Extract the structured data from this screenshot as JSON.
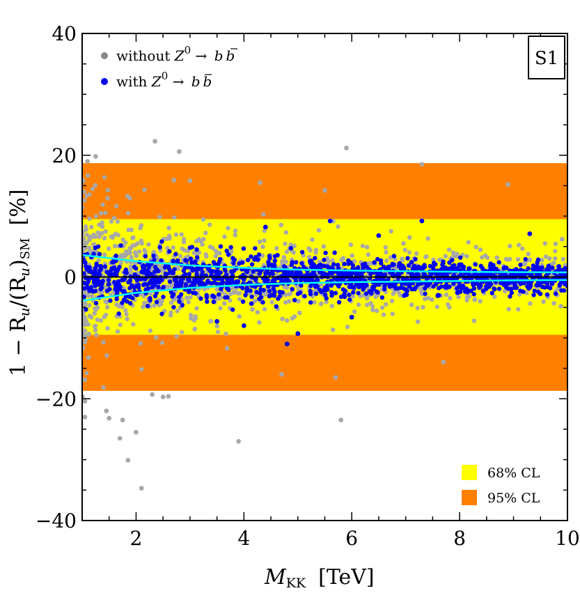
{
  "chart_data": {
    "type": "scatter",
    "title": "",
    "tag": "S1",
    "xlabel": {
      "main": "M",
      "sub": "KK",
      "unit": "[TeV]"
    },
    "ylabel": {
      "prefix": "1 − R",
      "sub1": "u",
      "mid": "/(R",
      "sub2": "u",
      "close": ")",
      "sub3": "SM",
      "unit": "[%]"
    },
    "xlim": [
      1,
      10
    ],
    "ylim": [
      -40,
      40
    ],
    "x_ticks": [
      2,
      4,
      6,
      8,
      10
    ],
    "x_tick_labels": [
      "2",
      "4",
      "6",
      "8",
      "10"
    ],
    "y_ticks": [
      -40,
      -20,
      0,
      20,
      40
    ],
    "y_tick_labels": [
      "−40",
      "−20",
      "0",
      "20",
      "40"
    ],
    "bands": [
      {
        "name": "95% CL",
        "range": [
          -18.7,
          18.7
        ],
        "color": "#ff8000"
      },
      {
        "name": "68% CL",
        "range": [
          -9.5,
          9.5
        ],
        "color": "#ffff00"
      }
    ],
    "series": [
      {
        "name": "without Z0 → b b̄",
        "legend": {
          "lead": "without ",
          "z": "Z",
          "sup": "0",
          "arrow": " → ",
          "b": "b",
          "bbar": "b"
        },
        "color": "#a8a8a8",
        "outliers": [
          [
            1.1,
            19
          ],
          [
            1.25,
            19.8
          ],
          [
            2.35,
            22.3
          ],
          [
            2.8,
            20.6
          ],
          [
            5.9,
            21.2
          ],
          [
            7.3,
            18.5
          ],
          [
            8.9,
            15.2
          ],
          [
            1.05,
            -20.4
          ],
          [
            1.05,
            -23
          ],
          [
            1.45,
            -22
          ],
          [
            1.5,
            -23.2
          ],
          [
            1.7,
            -26.5
          ],
          [
            1.85,
            -30.1
          ],
          [
            2.0,
            -25.5
          ],
          [
            2.1,
            -34.7
          ],
          [
            1.75,
            -23.5
          ],
          [
            2.3,
            -19.3
          ],
          [
            2.5,
            -19.7
          ],
          [
            2.6,
            -19.6
          ],
          [
            3.9,
            -27
          ],
          [
            5.8,
            -23.5
          ],
          [
            4.7,
            -16
          ],
          [
            5.7,
            -16.5
          ],
          [
            2.7,
            15.9
          ],
          [
            3.0,
            15.8
          ],
          [
            4.3,
            15.5
          ],
          [
            5.5,
            14.2
          ],
          [
            7.7,
            -14
          ],
          [
            9.9,
            6.2
          ]
        ],
        "envelope": [
          [
            1.0,
            17
          ],
          [
            2.0,
            12
          ],
          [
            3.0,
            10
          ],
          [
            4.0,
            8.5
          ],
          [
            6.0,
            7
          ],
          [
            8.0,
            6
          ],
          [
            10.0,
            5.5
          ]
        ],
        "density": 1100
      },
      {
        "name": "with Z0 → b b̄",
        "legend": {
          "lead": "with ",
          "z": "Z",
          "sup": "0",
          "arrow": " → ",
          "b": "b",
          "bbar": "b"
        },
        "color": "#0000ee",
        "outliers": [
          [
            4.4,
            8.2
          ],
          [
            5.6,
            9.2
          ],
          [
            7.3,
            9.2
          ],
          [
            9.3,
            7.1
          ],
          [
            4.0,
            -8.0
          ],
          [
            5.0,
            -9.3
          ],
          [
            6.0,
            -6.6
          ],
          [
            4.8,
            -11
          ],
          [
            3.5,
            -7.3
          ],
          [
            6.5,
            6.8
          ]
        ],
        "envelope": [
          [
            1.0,
            5.5
          ],
          [
            2.0,
            5.5
          ],
          [
            4.0,
            4.8
          ],
          [
            6.0,
            4
          ],
          [
            8.0,
            3.5
          ],
          [
            10.0,
            3
          ]
        ],
        "density": 1400
      }
    ],
    "curves": [
      {
        "name": "upper bound",
        "color": "#00ffff",
        "points": [
          [
            1.0,
            3.6
          ],
          [
            2,
            2.6
          ],
          [
            3,
            1.9
          ],
          [
            4,
            1.5
          ],
          [
            5,
            1.2
          ],
          [
            6,
            1.05
          ],
          [
            7,
            0.95
          ],
          [
            8,
            0.85
          ],
          [
            9,
            0.8
          ],
          [
            10,
            0.75
          ]
        ]
      },
      {
        "name": "lower bound",
        "color": "#00ffff",
        "points": [
          [
            1.0,
            -3.9
          ],
          [
            2,
            -2.6
          ],
          [
            3,
            -1.8
          ],
          [
            4,
            -1.3
          ],
          [
            5,
            -1.0
          ],
          [
            6,
            -0.85
          ],
          [
            7,
            -0.75
          ],
          [
            8,
            -0.65
          ],
          [
            9,
            -0.55
          ],
          [
            10,
            -0.5
          ]
        ]
      }
    ],
    "band_legend": [
      {
        "label": "68% CL",
        "color": "#ffff00"
      },
      {
        "label": "95% CL",
        "color": "#ff8000"
      }
    ],
    "legend_position": "top-left",
    "band_legend_position": "bottom-right"
  }
}
